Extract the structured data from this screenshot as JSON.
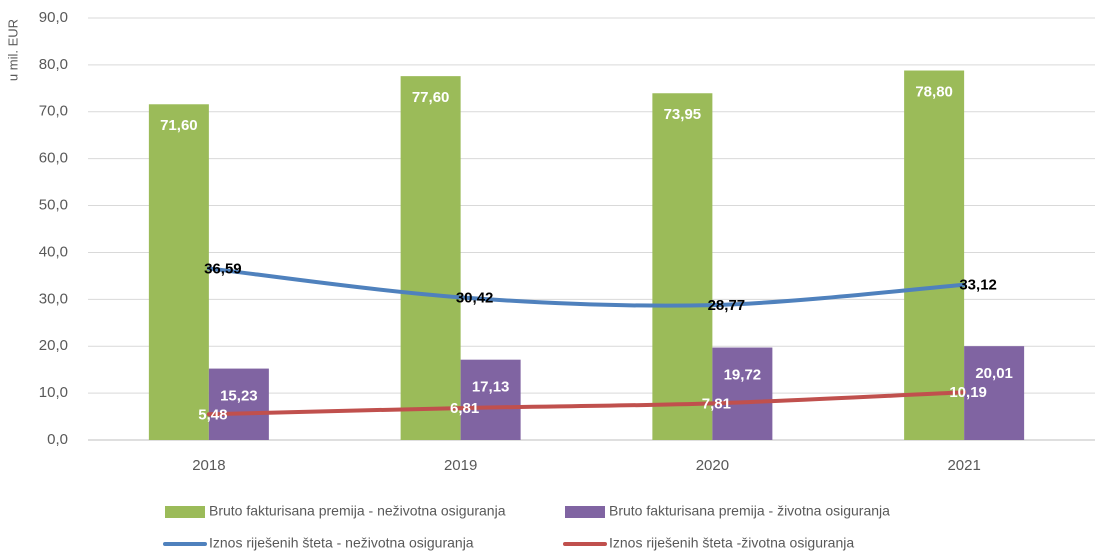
{
  "chart_data": {
    "type": "bar",
    "y_axis_label": "u mil. EUR",
    "categories": [
      "2018",
      "2019",
      "2020",
      "2021"
    ],
    "series": [
      {
        "name": "Bruto fakturisana premija - neživotna osiguranja",
        "type": "bar",
        "color": "#9bbb59",
        "values": [
          71.6,
          77.6,
          73.95,
          78.8
        ],
        "value_labels": [
          "71,60",
          "77,60",
          "73,95",
          "78,80"
        ]
      },
      {
        "name": "Bruto fakturisana premija - životna osiguranja",
        "type": "bar",
        "color": "#8064a2",
        "values": [
          15.23,
          17.13,
          19.72,
          20.01
        ],
        "value_labels": [
          "15,23",
          "17,13",
          "19,72",
          "20,01"
        ]
      },
      {
        "name": "Iznos riješenih šteta - neživotna osiguranja",
        "type": "line",
        "color": "#4f81bd",
        "values": [
          36.59,
          30.42,
          28.77,
          33.12
        ],
        "value_labels": [
          "36,59",
          "30,42",
          "28,77",
          "33,12"
        ]
      },
      {
        "name": "Iznos riješenih šteta -životna osiguranja",
        "type": "line",
        "color": "#c0504d",
        "values": [
          5.48,
          6.81,
          7.81,
          10.19
        ],
        "value_labels": [
          "5,48",
          "6,81",
          "7,81",
          "10,19"
        ]
      }
    ],
    "ylim": [
      0,
      90
    ],
    "yticks": [
      {
        "value": 0,
        "label": "0,0"
      },
      {
        "value": 10,
        "label": "10,0"
      },
      {
        "value": 20,
        "label": "20,0"
      },
      {
        "value": 30,
        "label": "30,0"
      },
      {
        "value": 40,
        "label": "40,0"
      },
      {
        "value": 50,
        "label": "50,0"
      },
      {
        "value": 60,
        "label": "60,0"
      },
      {
        "value": 70,
        "label": "70,0"
      },
      {
        "value": 80,
        "label": "80,0"
      },
      {
        "value": 90,
        "label": "90,0"
      }
    ],
    "grid": true
  }
}
